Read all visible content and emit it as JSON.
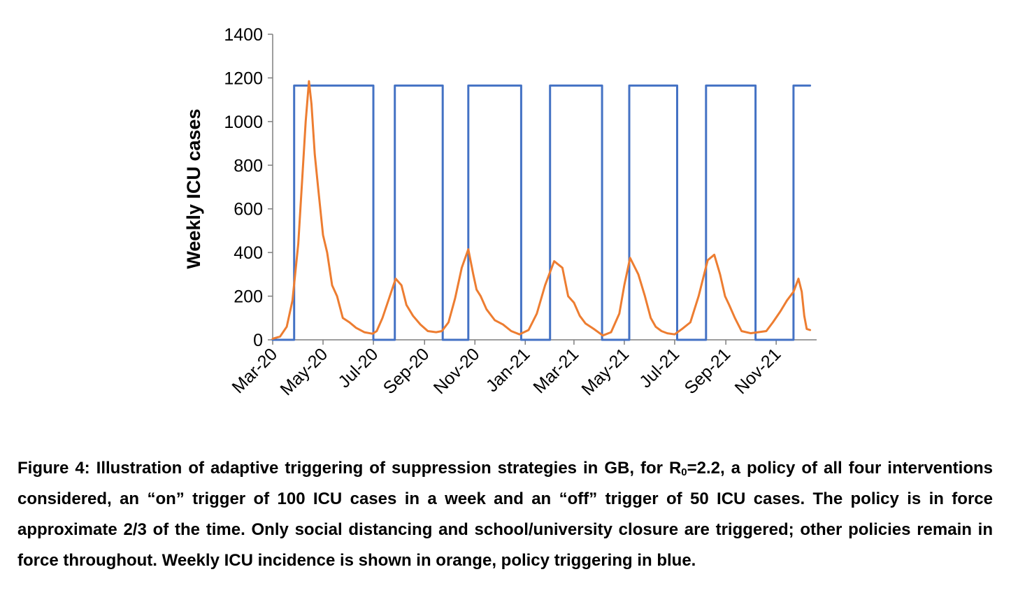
{
  "chart_data": {
    "type": "line",
    "ylabel": "Weekly ICU cases",
    "xlabel": "",
    "ylim": [
      0,
      1400
    ],
    "yticks": [
      0,
      200,
      400,
      600,
      800,
      1000,
      1200,
      1400
    ],
    "ytick_labels": [
      "0",
      "200",
      "400",
      "600",
      "800",
      "1000",
      "1200",
      "1400"
    ],
    "xlim": [
      "2020-03-01",
      "2021-12-20"
    ],
    "xtick_labels": [
      "Mar-20",
      "May-20",
      "Jul-20",
      "Sep-20",
      "Nov-20",
      "Jan-21",
      "Mar-21",
      "May-21",
      "Jul-21",
      "Sep-21",
      "Nov-21"
    ],
    "xtick_dates": [
      "2020-03-01",
      "2020-05-01",
      "2020-07-01",
      "2020-09-01",
      "2020-11-01",
      "2021-01-01",
      "2021-03-01",
      "2021-05-01",
      "2021-07-01",
      "2021-09-01",
      "2021-11-01"
    ],
    "grid": false,
    "legend": "none",
    "series": [
      {
        "color": "#ED7D31",
        "x": [
          "2020-03-01",
          "2020-03-10",
          "2020-03-18",
          "2020-03-25",
          "2020-04-01",
          "2020-04-06",
          "2020-04-10",
          "2020-04-14",
          "2020-04-17",
          "2020-04-21",
          "2020-04-25",
          "2020-05-01",
          "2020-05-06",
          "2020-05-12",
          "2020-05-18",
          "2020-05-25",
          "2020-06-02",
          "2020-06-10",
          "2020-06-20",
          "2020-06-30",
          "2020-07-05",
          "2020-07-12",
          "2020-07-20",
          "2020-07-28",
          "2020-08-04",
          "2020-08-10",
          "2020-08-18",
          "2020-08-27",
          "2020-09-05",
          "2020-09-15",
          "2020-09-22",
          "2020-09-30",
          "2020-10-08",
          "2020-10-16",
          "2020-10-24",
          "2020-10-30",
          "2020-11-03",
          "2020-11-08",
          "2020-11-15",
          "2020-11-25",
          "2020-12-05",
          "2020-12-15",
          "2020-12-25",
          "2021-01-05",
          "2021-01-15",
          "2021-01-25",
          "2021-02-05",
          "2021-02-15",
          "2021-02-22",
          "2021-03-01",
          "2021-03-08",
          "2021-03-15",
          "2021-03-25",
          "2021-04-05",
          "2021-04-15",
          "2021-04-25",
          "2021-05-01",
          "2021-05-08",
          "2021-05-18",
          "2021-05-26",
          "2021-06-02",
          "2021-06-08",
          "2021-06-15",
          "2021-06-22",
          "2021-07-01",
          "2021-07-10",
          "2021-07-20",
          "2021-07-30",
          "2021-08-10",
          "2021-08-18",
          "2021-08-25",
          "2021-08-31",
          "2021-09-05",
          "2021-09-12",
          "2021-09-20",
          "2021-10-01",
          "2021-10-10",
          "2021-10-20",
          "2021-10-28",
          "2021-11-06",
          "2021-11-14",
          "2021-11-22",
          "2021-11-28",
          "2021-12-02",
          "2021-12-05",
          "2021-12-08",
          "2021-12-12"
        ],
        "y": [
          5,
          15,
          60,
          180,
          440,
          750,
          1000,
          1185,
          1080,
          850,
          700,
          480,
          400,
          250,
          200,
          100,
          80,
          55,
          35,
          28,
          40,
          100,
          190,
          280,
          250,
          160,
          110,
          70,
          40,
          35,
          40,
          80,
          190,
          330,
          415,
          300,
          230,
          200,
          140,
          90,
          70,
          40,
          25,
          45,
          120,
          250,
          360,
          330,
          200,
          170,
          110,
          75,
          50,
          20,
          35,
          120,
          250,
          375,
          300,
          200,
          100,
          60,
          40,
          30,
          25,
          50,
          80,
          200,
          365,
          390,
          300,
          200,
          160,
          100,
          40,
          30,
          35,
          40,
          80,
          130,
          180,
          220,
          280,
          220,
          110,
          50,
          45
        ]
      },
      {
        "color": "#4472C4",
        "x": [
          "2020-03-01",
          "2020-03-27",
          "2020-03-27",
          "2020-07-01",
          "2020-07-01",
          "2020-07-27",
          "2020-07-27",
          "2020-09-23",
          "2020-09-23",
          "2020-10-24",
          "2020-10-24",
          "2020-12-27",
          "2020-12-27",
          "2021-01-31",
          "2021-01-31",
          "2021-04-04",
          "2021-04-04",
          "2021-05-07",
          "2021-05-07",
          "2021-07-04",
          "2021-07-04",
          "2021-08-08",
          "2021-08-08",
          "2021-10-07",
          "2021-10-07",
          "2021-11-22",
          "2021-11-22",
          "2021-12-12"
        ],
        "y": [
          0,
          0,
          1165,
          1165,
          0,
          0,
          1165,
          1165,
          0,
          0,
          1165,
          1165,
          0,
          0,
          1165,
          1165,
          0,
          0,
          1165,
          1165,
          0,
          0,
          1165,
          1165,
          0,
          0,
          1165,
          1165
        ]
      }
    ]
  },
  "caption": {
    "part1": "Figure 4: Illustration of adaptive triggering of suppression strategies in GB, for R",
    "sub": "0",
    "part2": "=2.2, a policy of all four interventions considered, an “on” trigger of 100 ICU cases in a week and an “off” trigger of 50 ICU cases.  The policy is in force approximate 2/3 of the time. Only social distancing and school/university closure are triggered; other policies remain in force throughout. Weekly ICU incidence is shown in orange, policy triggering in blue."
  }
}
